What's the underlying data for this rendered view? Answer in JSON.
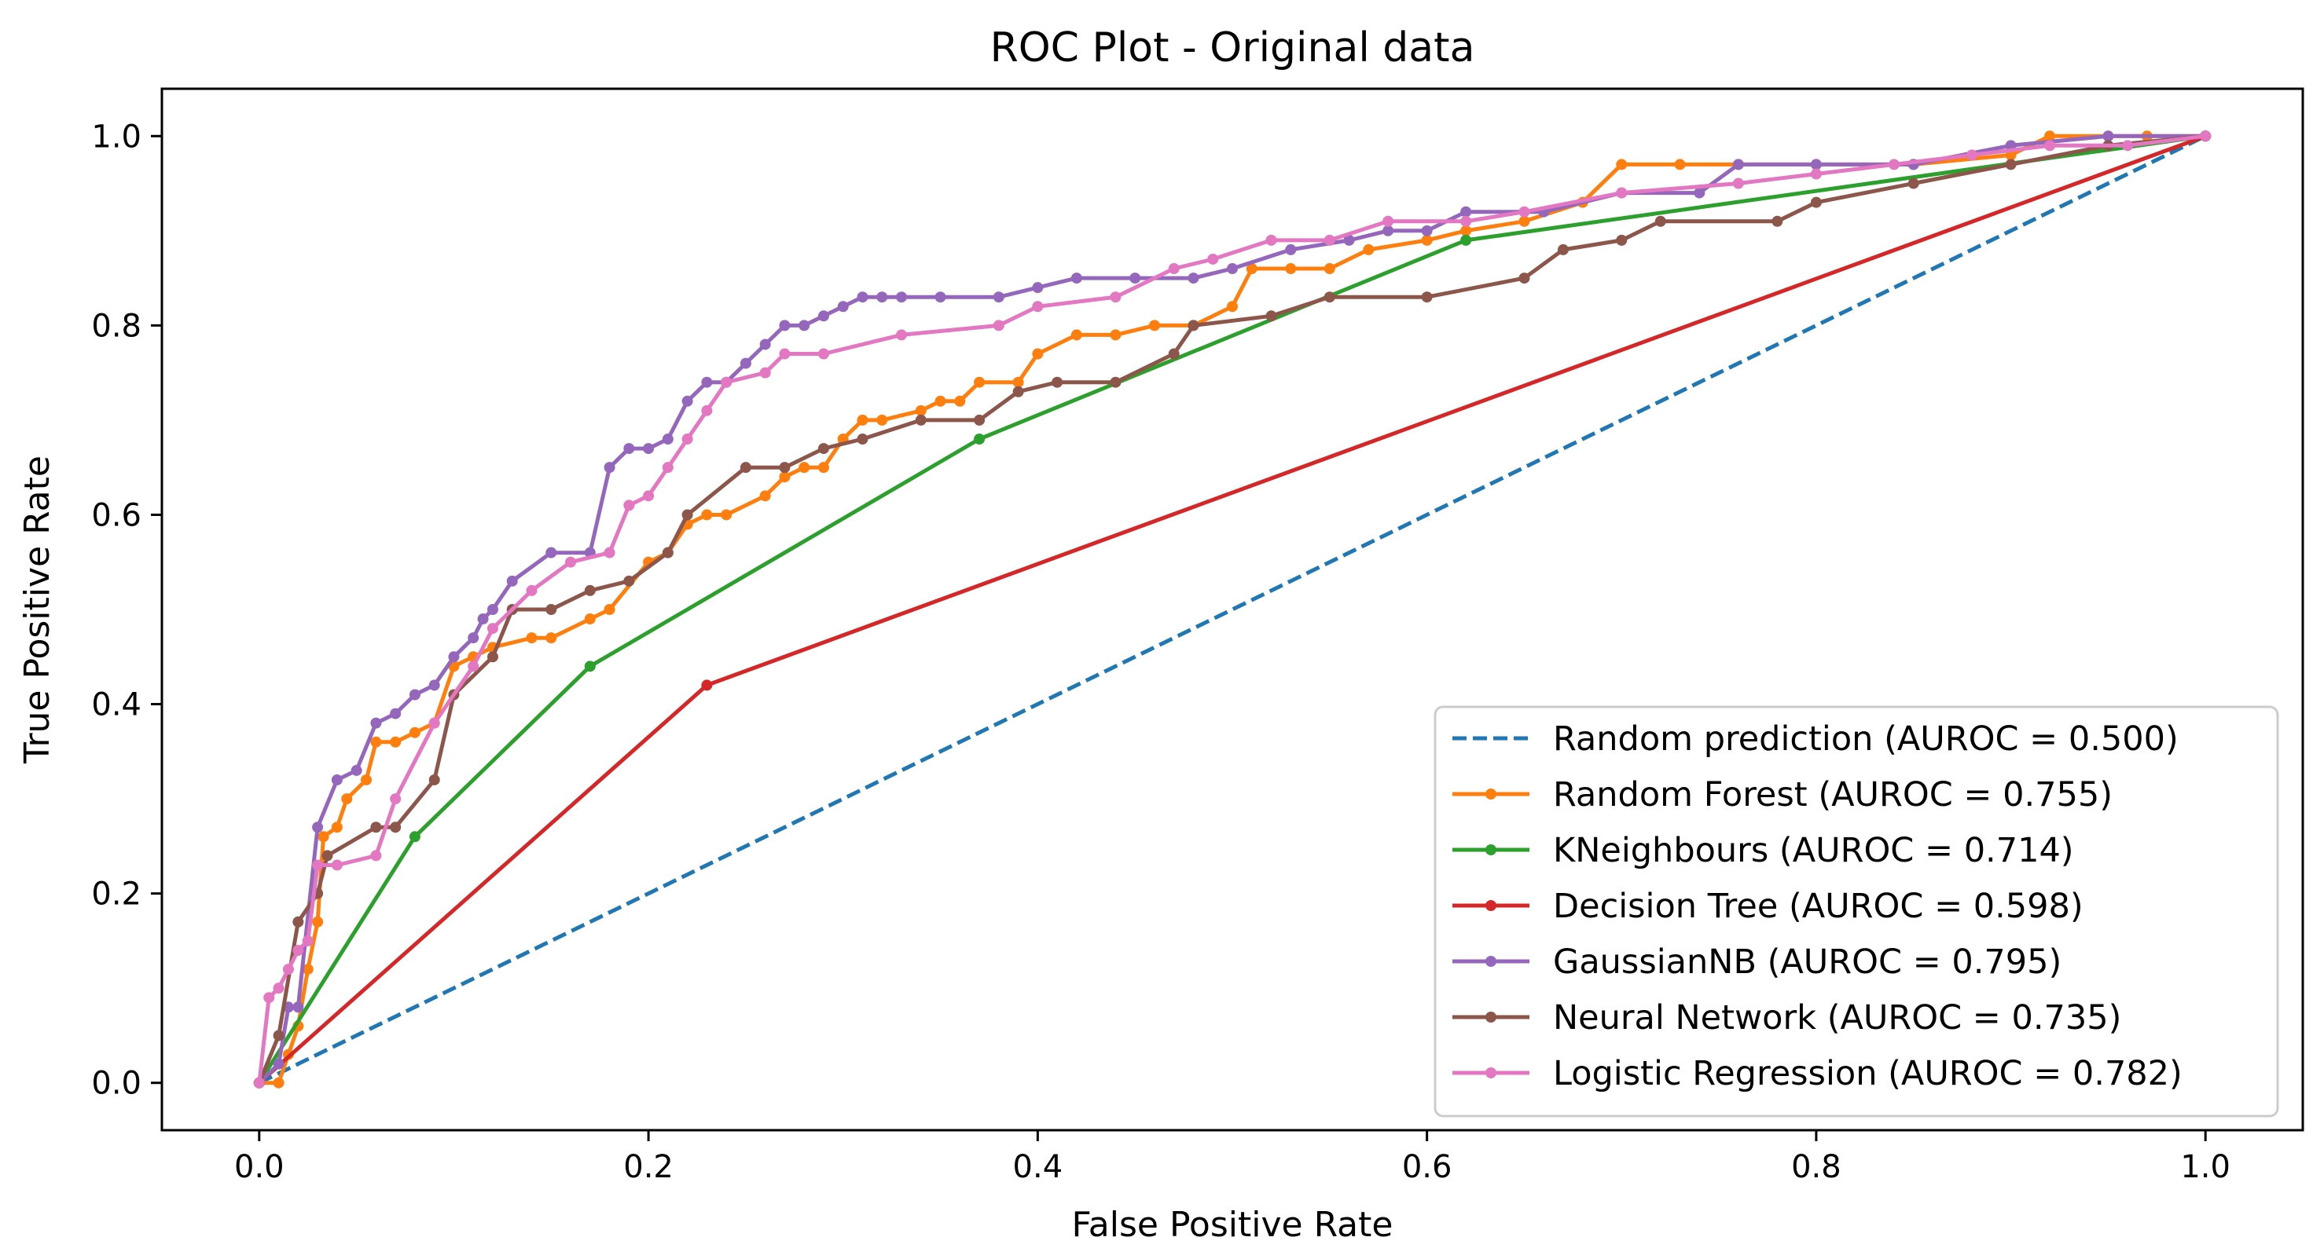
{
  "chart_data": {
    "type": "line",
    "title": "ROC Plot - Original data",
    "xlabel": "False Positive Rate",
    "ylabel": "True Positive Rate",
    "xlim": [
      -0.05,
      1.05
    ],
    "ylim": [
      -0.05,
      1.05
    ],
    "xticks": [
      0.0,
      0.2,
      0.4,
      0.6,
      0.8,
      1.0
    ],
    "yticks": [
      0.0,
      0.2,
      0.4,
      0.6,
      0.8,
      1.0
    ],
    "xtick_labels": [
      "0.0",
      "0.2",
      "0.4",
      "0.6",
      "0.8",
      "1.0"
    ],
    "ytick_labels": [
      "0.0",
      "0.2",
      "0.4",
      "0.6",
      "0.8",
      "1.0"
    ],
    "grid": false,
    "legend_position": "lower-right",
    "series": [
      {
        "name": "Random prediction (AUROC = 0.500)",
        "color": "#1f77b4",
        "style": "dashed",
        "markers": false,
        "x": [
          0.0,
          1.0
        ],
        "y": [
          0.0,
          1.0
        ]
      },
      {
        "name": "Random Forest (AUROC = 0.755)",
        "color": "#ff7f0e",
        "style": "solid",
        "markers": true,
        "x": [
          0.0,
          0.01,
          0.015,
          0.02,
          0.025,
          0.03,
          0.033,
          0.04,
          0.045,
          0.055,
          0.06,
          0.07,
          0.08,
          0.09,
          0.1,
          0.11,
          0.12,
          0.14,
          0.15,
          0.17,
          0.18,
          0.2,
          0.21,
          0.22,
          0.23,
          0.24,
          0.26,
          0.27,
          0.28,
          0.29,
          0.3,
          0.31,
          0.32,
          0.34,
          0.35,
          0.36,
          0.37,
          0.39,
          0.4,
          0.42,
          0.44,
          0.46,
          0.48,
          0.5,
          0.51,
          0.53,
          0.55,
          0.57,
          0.6,
          0.62,
          0.65,
          0.68,
          0.7,
          0.73,
          0.76,
          0.8,
          0.85,
          0.9,
          0.92,
          0.95,
          0.97,
          1.0
        ],
        "y": [
          0.0,
          0.0,
          0.03,
          0.06,
          0.12,
          0.17,
          0.26,
          0.27,
          0.3,
          0.32,
          0.36,
          0.36,
          0.37,
          0.38,
          0.44,
          0.45,
          0.46,
          0.47,
          0.47,
          0.49,
          0.5,
          0.55,
          0.56,
          0.59,
          0.6,
          0.6,
          0.62,
          0.64,
          0.65,
          0.65,
          0.68,
          0.7,
          0.7,
          0.71,
          0.72,
          0.72,
          0.74,
          0.74,
          0.77,
          0.79,
          0.79,
          0.8,
          0.8,
          0.82,
          0.86,
          0.86,
          0.86,
          0.88,
          0.89,
          0.9,
          0.91,
          0.93,
          0.97,
          0.97,
          0.97,
          0.97,
          0.97,
          0.98,
          1.0,
          1.0,
          1.0,
          1.0
        ]
      },
      {
        "name": "KNeighbours (AUROC = 0.714)",
        "color": "#2ca02c",
        "style": "solid",
        "markers": true,
        "x": [
          0.0,
          0.08,
          0.17,
          0.37,
          0.62,
          1.0
        ],
        "y": [
          0.0,
          0.26,
          0.44,
          0.68,
          0.89,
          1.0
        ]
      },
      {
        "name": "Decision Tree (AUROC = 0.598)",
        "color": "#d62728",
        "style": "solid",
        "markers": true,
        "x": [
          0.0,
          0.23,
          1.0
        ],
        "y": [
          0.0,
          0.42,
          1.0
        ]
      },
      {
        "name": "GaussianNB (AUROC = 0.795)",
        "color": "#9467bd",
        "style": "solid",
        "markers": true,
        "x": [
          0.0,
          0.01,
          0.015,
          0.02,
          0.03,
          0.04,
          0.05,
          0.06,
          0.07,
          0.08,
          0.09,
          0.1,
          0.11,
          0.115,
          0.12,
          0.13,
          0.15,
          0.17,
          0.18,
          0.19,
          0.2,
          0.21,
          0.22,
          0.23,
          0.24,
          0.25,
          0.26,
          0.27,
          0.28,
          0.29,
          0.3,
          0.31,
          0.32,
          0.33,
          0.35,
          0.38,
          0.4,
          0.42,
          0.45,
          0.48,
          0.5,
          0.53,
          0.56,
          0.58,
          0.6,
          0.62,
          0.66,
          0.7,
          0.74,
          0.76,
          0.8,
          0.85,
          0.9,
          0.95,
          1.0
        ],
        "y": [
          0.0,
          0.02,
          0.08,
          0.08,
          0.27,
          0.32,
          0.33,
          0.38,
          0.39,
          0.41,
          0.42,
          0.45,
          0.47,
          0.49,
          0.5,
          0.53,
          0.56,
          0.56,
          0.65,
          0.67,
          0.67,
          0.68,
          0.72,
          0.74,
          0.74,
          0.76,
          0.78,
          0.8,
          0.8,
          0.81,
          0.82,
          0.83,
          0.83,
          0.83,
          0.83,
          0.83,
          0.84,
          0.85,
          0.85,
          0.85,
          0.86,
          0.88,
          0.89,
          0.9,
          0.9,
          0.92,
          0.92,
          0.94,
          0.94,
          0.97,
          0.97,
          0.97,
          0.99,
          1.0,
          1.0
        ]
      },
      {
        "name": "Neural Network (AUROC = 0.735)",
        "color": "#8c564b",
        "style": "solid",
        "markers": true,
        "x": [
          0.0,
          0.01,
          0.02,
          0.03,
          0.035,
          0.06,
          0.07,
          0.09,
          0.1,
          0.12,
          0.13,
          0.15,
          0.17,
          0.19,
          0.21,
          0.22,
          0.25,
          0.27,
          0.29,
          0.31,
          0.34,
          0.37,
          0.39,
          0.41,
          0.44,
          0.47,
          0.48,
          0.52,
          0.55,
          0.6,
          0.65,
          0.67,
          0.7,
          0.72,
          0.78,
          0.8,
          0.85,
          0.9,
          0.95,
          1.0
        ],
        "y": [
          0.0,
          0.05,
          0.17,
          0.2,
          0.24,
          0.27,
          0.27,
          0.32,
          0.41,
          0.45,
          0.5,
          0.5,
          0.52,
          0.53,
          0.56,
          0.6,
          0.65,
          0.65,
          0.67,
          0.68,
          0.7,
          0.7,
          0.73,
          0.74,
          0.74,
          0.77,
          0.8,
          0.81,
          0.83,
          0.83,
          0.85,
          0.88,
          0.89,
          0.91,
          0.91,
          0.93,
          0.95,
          0.97,
          0.99,
          1.0
        ]
      },
      {
        "name": "Logistic Regression (AUROC = 0.782)",
        "color": "#e377c2",
        "style": "solid",
        "markers": true,
        "x": [
          0.0,
          0.005,
          0.01,
          0.015,
          0.02,
          0.025,
          0.03,
          0.04,
          0.06,
          0.07,
          0.09,
          0.11,
          0.12,
          0.14,
          0.16,
          0.18,
          0.19,
          0.2,
          0.21,
          0.22,
          0.23,
          0.24,
          0.26,
          0.27,
          0.29,
          0.33,
          0.38,
          0.4,
          0.44,
          0.47,
          0.49,
          0.52,
          0.55,
          0.58,
          0.62,
          0.65,
          0.7,
          0.76,
          0.8,
          0.84,
          0.88,
          0.92,
          0.96,
          1.0
        ],
        "y": [
          0.0,
          0.09,
          0.1,
          0.12,
          0.14,
          0.15,
          0.23,
          0.23,
          0.24,
          0.3,
          0.38,
          0.44,
          0.48,
          0.52,
          0.55,
          0.56,
          0.61,
          0.62,
          0.65,
          0.68,
          0.71,
          0.74,
          0.75,
          0.77,
          0.77,
          0.79,
          0.8,
          0.82,
          0.83,
          0.86,
          0.87,
          0.89,
          0.89,
          0.91,
          0.91,
          0.92,
          0.94,
          0.95,
          0.96,
          0.97,
          0.98,
          0.99,
          0.99,
          1.0
        ]
      }
    ]
  }
}
